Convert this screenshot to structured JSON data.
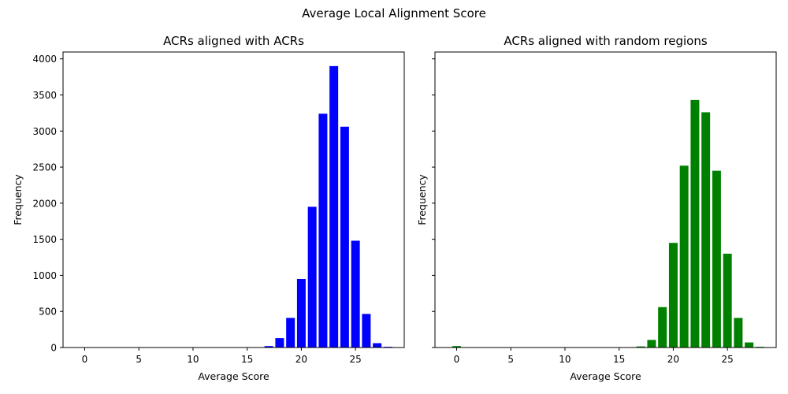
{
  "figure_title": "Average Local Alignment Score",
  "chart_data": [
    {
      "type": "bar",
      "title": "ACRs aligned with ACRs",
      "xlabel": "Average Score",
      "ylabel": "Frequency",
      "color": "#0000ff",
      "xlim": [
        -2,
        29.5
      ],
      "ylim": [
        0,
        4095
      ],
      "xticks": [
        0,
        5,
        10,
        15,
        20,
        25
      ],
      "yticks": [
        0,
        500,
        1000,
        1500,
        2000,
        2500,
        3000,
        3500,
        4000
      ],
      "x": [
        16,
        17,
        18,
        19,
        20,
        21,
        22,
        23,
        24,
        25,
        26,
        27,
        28
      ],
      "values": [
        2,
        20,
        130,
        410,
        950,
        1950,
        3240,
        3900,
        3060,
        1480,
        465,
        60,
        10
      ]
    },
    {
      "type": "bar",
      "title": "ACRs aligned with random regions",
      "xlabel": "Average Score",
      "ylabel": "Frequency",
      "color": "#008000",
      "xlim": [
        -2,
        29.5
      ],
      "ylim": [
        0,
        4095
      ],
      "xticks": [
        0,
        5,
        10,
        15,
        20,
        25
      ],
      "yticks": [
        0,
        500,
        1000,
        1500,
        2000,
        2500,
        3000,
        3500,
        4000
      ],
      "show_yticklabels": false,
      "x": [
        0,
        16,
        17,
        18,
        19,
        20,
        21,
        22,
        23,
        24,
        25,
        26,
        27,
        28
      ],
      "values": [
        20,
        2,
        15,
        105,
        560,
        1450,
        2520,
        3430,
        3260,
        2450,
        1300,
        410,
        70,
        10
      ]
    }
  ]
}
